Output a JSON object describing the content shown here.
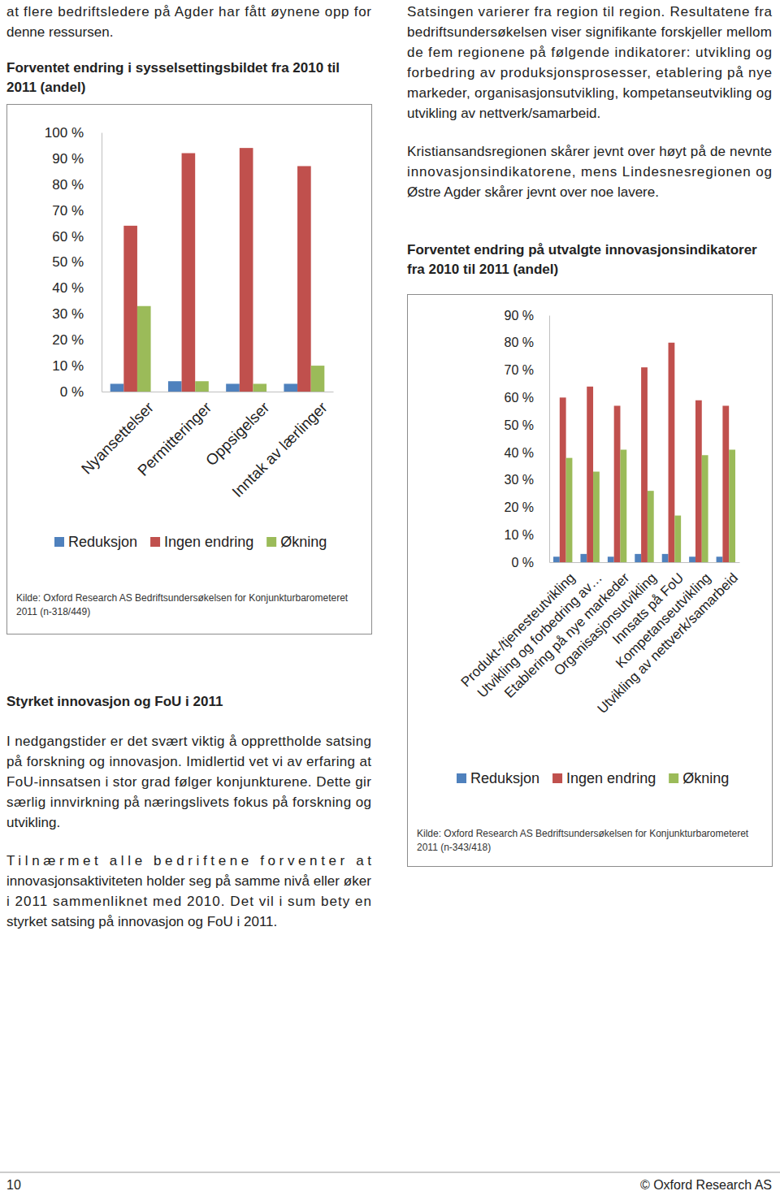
{
  "chart_data": [
    {
      "type": "bar",
      "title": "Forventet endring i sysselsettingsbildet fra 2010 til 2011 (andel)",
      "categories": [
        "Nyansettelser",
        "Permitteringer",
        "Oppsigelser",
        "Inntak av lærlinger"
      ],
      "series": [
        {
          "name": "Reduksjon",
          "color": "#4F81BD",
          "values": [
            3,
            4,
            3,
            3
          ]
        },
        {
          "name": "Ingen endring",
          "color": "#C0504D",
          "values": [
            64,
            92,
            94,
            87
          ]
        },
        {
          "name": "Økning",
          "color": "#9BBB59",
          "values": [
            33,
            4,
            3,
            10
          ]
        }
      ],
      "ylim": [
        0,
        100
      ],
      "yticks": [
        {
          "value": 0,
          "label": "0 %"
        },
        {
          "value": 10,
          "label": "10 %"
        },
        {
          "value": 20,
          "label": "20 %"
        },
        {
          "value": 30,
          "label": "30 %"
        },
        {
          "value": 40,
          "label": "40 %"
        },
        {
          "value": 50,
          "label": "50 %"
        },
        {
          "value": 60,
          "label": "60 %"
        },
        {
          "value": 70,
          "label": "70 %"
        },
        {
          "value": 80,
          "label": "80 %"
        },
        {
          "value": 90,
          "label": "90 %"
        },
        {
          "value": 100,
          "label": "100 %"
        }
      ],
      "grid": false,
      "legend": "bottom",
      "source": "Kilde: Oxford Research AS Bedriftsundersøkelsen for Konjunkturbarometeret 2011 (n-318/449)"
    },
    {
      "type": "bar",
      "title": "Forventet endring på utvalgte innovasjonsindikatorer fra 2010 til 2011 (andel)",
      "categories": [
        "Produkt-/tjenesteutvikling",
        "Utvikling og forbedring av…",
        "Etablering på nye markeder",
        "Organisasjonsutvikling",
        "Innsats på FoU",
        "Kompetanseutvikling",
        "Utvikling av nettverk/samarbeid"
      ],
      "series": [
        {
          "name": "Reduksjon",
          "color": "#4F81BD",
          "values": [
            2,
            3,
            2,
            3,
            3,
            2,
            2
          ]
        },
        {
          "name": "Ingen endring",
          "color": "#C0504D",
          "values": [
            60,
            64,
            57,
            71,
            80,
            59,
            57
          ]
        },
        {
          "name": "Økning",
          "color": "#9BBB59",
          "values": [
            38,
            33,
            41,
            26,
            17,
            39,
            41
          ]
        }
      ],
      "ylim": [
        0,
        90
      ],
      "yticks": [
        {
          "value": 0,
          "label": "0 %"
        },
        {
          "value": 10,
          "label": "10 %"
        },
        {
          "value": 20,
          "label": "20 %"
        },
        {
          "value": 30,
          "label": "30 %"
        },
        {
          "value": 40,
          "label": "40 %"
        },
        {
          "value": 50,
          "label": "50 %"
        },
        {
          "value": 60,
          "label": "60 %"
        },
        {
          "value": 70,
          "label": "70 %"
        },
        {
          "value": 80,
          "label": "80 %"
        },
        {
          "value": 90,
          "label": "90 %"
        }
      ],
      "grid": false,
      "legend": "bottom",
      "source": "Kilde: Oxford Research AS Bedriftsundersøkelsen for Konjunkturbarometeret 2011 (n-343/418)"
    }
  ],
  "document": {
    "left_intro": "at flere bedriftsledere på Agder har fått øynene opp for denne ressursen.",
    "left_heading": "Styrket innovasjon og FoU i 2011",
    "left_paragraphs": [
      "I nedgangstider er det svært viktig å opprettholde satsing på forskning og innovasjon. Imidlertid vet vi av erfaring at FoU-innsatsen i stor grad følger konjunkturene. Dette gir særlig innvirkning på næringslivets fokus på forskning og utvikling.",
      "Tilnærmet alle bedriftene forventer at innovasjonsaktiviteten holder seg på samme nivå eller øker i 2011 sammenliknet med 2010. Det vil i sum bety en styrket satsing på innovasjon og FoU i 2011."
    ],
    "right_paragraphs": [
      "Satsingen varierer fra region til region. Resultatene fra bedriftsundersøkelsen viser signifikante forskjeller mellom de fem regionene på følgende indikatorer: utvikling og forbedring av produksjonsprosesser, etablering på nye markeder, organisasjonsutvikling, kompetanseutvikling og utvikling av nettverk/samarbeid.",
      "Kristiansandsregionen skårer jevnt over høyt på de nevnte innovasjonsindikatorene, mens Lindesnesregionen og Østre Agder skårer jevnt over noe lavere."
    ],
    "footer": {
      "page": "10",
      "publisher": "© Oxford Research AS"
    }
  }
}
